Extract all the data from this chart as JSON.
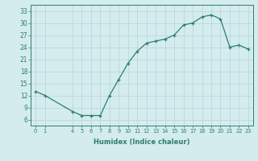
{
  "x": [
    0,
    1,
    4,
    5,
    6,
    7,
    8,
    9,
    10,
    11,
    12,
    13,
    14,
    15,
    16,
    17,
    18,
    19,
    20,
    21,
    22,
    23
  ],
  "y": [
    13,
    12,
    8,
    7,
    7,
    7,
    12,
    16,
    20,
    23,
    25,
    25.5,
    26,
    27,
    29.5,
    30,
    31.5,
    32,
    31,
    24,
    24.5,
    23.5
  ],
  "xlabel": "Humidex (Indice chaleur)",
  "xticks": [
    0,
    1,
    4,
    5,
    6,
    7,
    8,
    9,
    10,
    11,
    12,
    13,
    14,
    15,
    16,
    17,
    18,
    19,
    20,
    21,
    22,
    23
  ],
  "yticks": [
    6,
    9,
    12,
    15,
    18,
    21,
    24,
    27,
    30,
    33
  ],
  "ylim": [
    4.5,
    34.5
  ],
  "xlim": [
    -0.5,
    23.5
  ],
  "line_color": "#2e7d6e",
  "marker": "+",
  "bg_color": "#d4ecee",
  "grid_color": "#b5d5d8"
}
